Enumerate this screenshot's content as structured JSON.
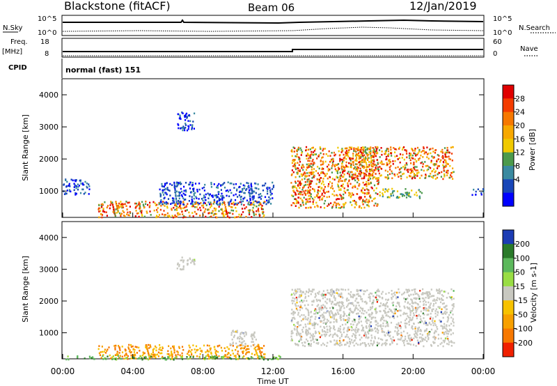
{
  "header": {
    "title": "Blackstone (fitACF)",
    "beam": "Beam 06",
    "date": "12/Jan/2019"
  },
  "status_panels": {
    "nsky_label": "N.Sky",
    "nsearch_label": "N.Search",
    "nsky_ticks": [
      "10^5",
      "10^0"
    ],
    "nsearch_ticks": [
      "10^5",
      "10^0"
    ],
    "freq_label_1": "Freq.",
    "freq_label_2": "[MHz]",
    "freq_ticks": [
      "18",
      "8"
    ],
    "nave_label": "Nave",
    "nave_ticks": [
      "60",
      "0"
    ],
    "cpid_label": "CPID",
    "cpid_value": "normal (fast) 151"
  },
  "chart_data": [
    {
      "type": "heatmap",
      "name": "power",
      "ylabel": "Slant Range [km]",
      "yticks": [
        1000,
        2000,
        3000,
        4000
      ],
      "ylim": [
        180,
        4500
      ],
      "xlim_hours": [
        0,
        24
      ],
      "colorbar_label": "Power [dB]",
      "colorbar_ticks": [
        "28",
        "24",
        "20",
        "16",
        "12",
        "8",
        "4"
      ],
      "colorbar_colors": [
        "#e00000",
        "#f43c00",
        "#f67800",
        "#f7a800",
        "#f0c900",
        "#4c9a4c",
        "#3a8aa0",
        "#1846b8",
        "#0000ff"
      ],
      "regions": [
        {
          "t": [
            0.0,
            1.5
          ],
          "r": [
            900,
            1400
          ],
          "level": "low"
        },
        {
          "t": [
            2.0,
            11.5
          ],
          "r": [
            200,
            700
          ],
          "level": "high"
        },
        {
          "t": [
            5.5,
            12.0
          ],
          "r": [
            600,
            1300
          ],
          "level": "low"
        },
        {
          "t": [
            6.5,
            7.5
          ],
          "r": [
            2900,
            3500
          ],
          "level": "low"
        },
        {
          "t": [
            13.0,
            18.0
          ],
          "r": [
            500,
            2400
          ],
          "level": "high"
        },
        {
          "t": [
            16.0,
            22.3
          ],
          "r": [
            1400,
            2400
          ],
          "level": "high"
        },
        {
          "t": [
            18.0,
            20.5
          ],
          "r": [
            800,
            1100
          ],
          "level": "mid"
        },
        {
          "t": [
            23.3,
            24.0
          ],
          "r": [
            900,
            1100
          ],
          "level": "low"
        }
      ]
    },
    {
      "type": "heatmap",
      "name": "velocity",
      "ylabel": "Slant Range [km]",
      "yticks": [
        1000,
        2000,
        3000,
        4000
      ],
      "ylim": [
        180,
        4500
      ],
      "xlim_hours": [
        0,
        24
      ],
      "xticks": [
        "00:00",
        "04:00",
        "08:00",
        "12:00",
        "16:00",
        "20:00",
        "00:00"
      ],
      "xlabel": "Time UT",
      "colorbar_label": "Velocity [m s-1]",
      "colorbar_ticks": [
        "200",
        "100",
        "50",
        "15",
        "-15",
        "-50",
        "-100",
        "-200"
      ],
      "colorbar_colors": [
        "#1c3cb4",
        "#2a7a2a",
        "#5cb85c",
        "#99dd44",
        "#c8c8c0",
        "#f7c200",
        "#f7a000",
        "#f77800",
        "#f02000"
      ],
      "regions": [
        {
          "t": [
            2.0,
            11.5
          ],
          "r": [
            200,
            650
          ],
          "level": "neg"
        },
        {
          "t": [
            0.0,
            12.5
          ],
          "r": [
            180,
            300
          ],
          "level": "pos"
        },
        {
          "t": [
            13.0,
            22.3
          ],
          "r": [
            600,
            2400
          ],
          "level": "zero"
        },
        {
          "t": [
            6.5,
            7.5
          ],
          "r": [
            3000,
            3400
          ],
          "level": "zero"
        },
        {
          "t": [
            9.5,
            11.0
          ],
          "r": [
            600,
            1100
          ],
          "level": "zero"
        }
      ]
    }
  ]
}
